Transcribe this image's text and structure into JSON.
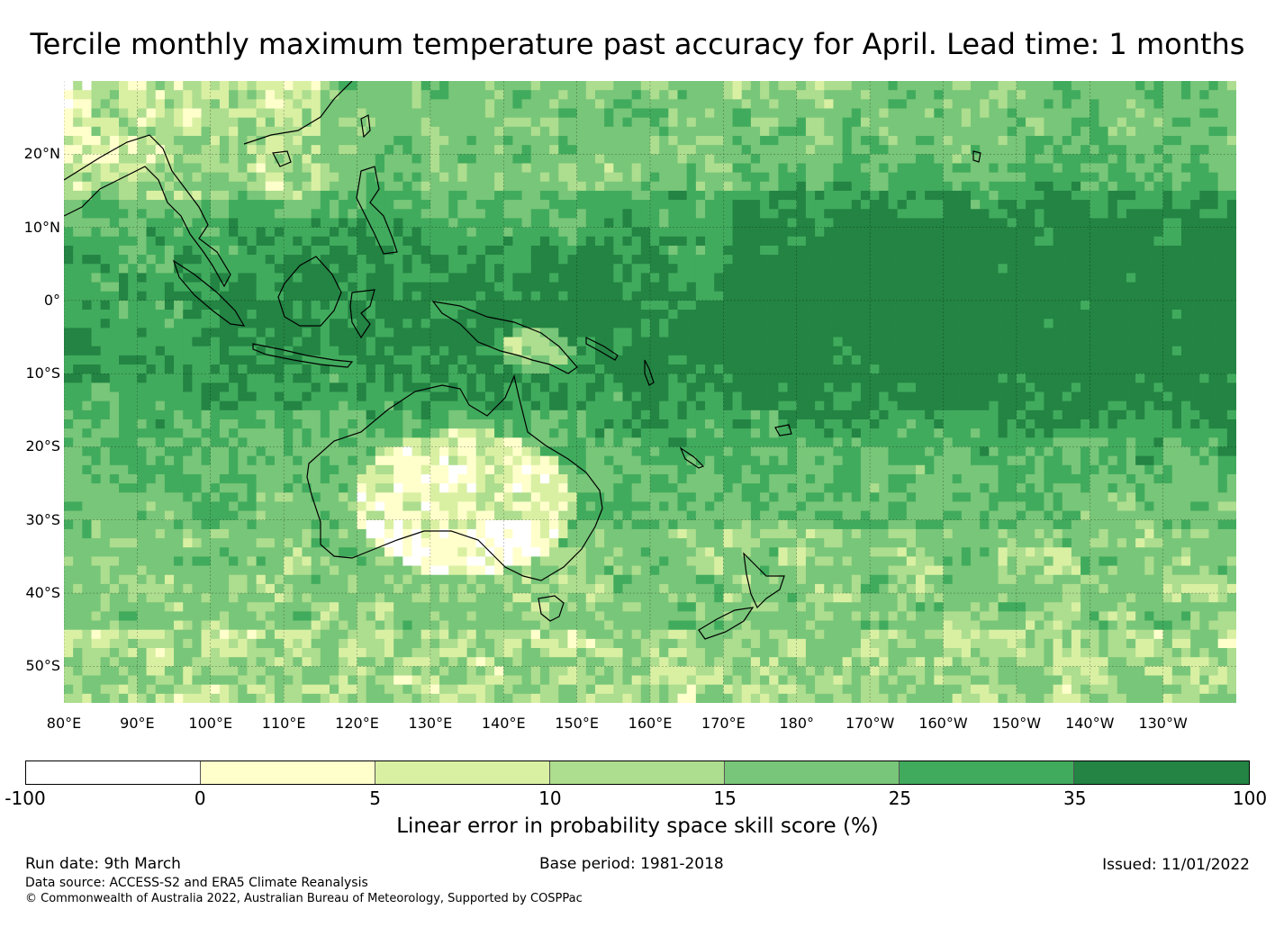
{
  "title": "Tercile monthly maximum temperature past accuracy for April. Lead time: 1 months",
  "map": {
    "lat_labels": [
      "20°N",
      "10°N",
      "0°",
      "10°S",
      "20°S",
      "30°S",
      "40°S",
      "50°S"
    ],
    "lon_labels": [
      "80°E",
      "90°E",
      "100°E",
      "110°E",
      "120°E",
      "130°E",
      "140°E",
      "150°E",
      "160°E",
      "170°E",
      "180°",
      "170°W",
      "160°W",
      "150°W",
      "140°W",
      "130°W"
    ],
    "lat_range": [
      -55,
      30
    ],
    "lon_range": [
      80,
      240
    ]
  },
  "legend": {
    "ticks": [
      "-100",
      "0",
      "5",
      "10",
      "15",
      "25",
      "35",
      "100"
    ],
    "colors": [
      "#ffffff",
      "#ffffcc",
      "#d9f0a3",
      "#addd8e",
      "#78c679",
      "#41ab5d",
      "#238443"
    ],
    "label": "Linear error in probability space skill score (%)"
  },
  "footer": {
    "run_date": "Run date: 9th March",
    "base_period": "Base period: 1981-2018",
    "issued": "Issued: 11/01/2022",
    "data_source": "Data source: ACCESS-S2 and ERA5 Climate Reanalysis",
    "copyright": "© Commonwealth of Australia 2022, Australian Bureau of Meteorology, Supported by COSPPac"
  }
}
